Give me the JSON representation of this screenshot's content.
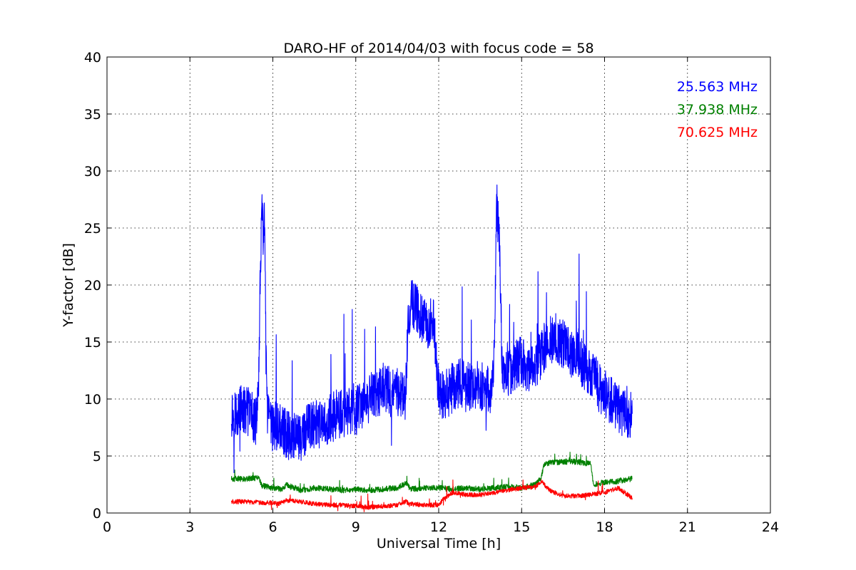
{
  "chart_data": {
    "type": "line",
    "title": "DARO-HF of 2014/04/03 with focus code = 58",
    "xlabel": "Universal Time [h]",
    "ylabel": "Y-factor [dB]",
    "xlim": [
      0,
      24
    ],
    "ylim": [
      0,
      40
    ],
    "xticks": [
      0,
      3,
      6,
      9,
      12,
      15,
      18,
      21,
      24
    ],
    "xtick_labels": [
      "0",
      "3",
      "6",
      "9",
      "12",
      "15",
      "18",
      "21",
      "24"
    ],
    "yticks": [
      0,
      5,
      10,
      15,
      20,
      25,
      30,
      35,
      40
    ],
    "ytick_labels": [
      "0",
      "5",
      "10",
      "15",
      "20",
      "25",
      "30",
      "35",
      "40"
    ],
    "grid": true,
    "legend_position": "top-right",
    "series": [
      {
        "name": "25.563 MHz",
        "color": "#0000ff",
        "x": [
          4.5,
          4.6,
          4.8,
          5.0,
          5.2,
          5.4,
          5.5,
          5.55,
          5.6,
          5.65,
          5.7,
          5.75,
          5.8,
          5.9,
          6.0,
          6.2,
          6.4,
          6.6,
          6.8,
          7.0,
          7.2,
          7.5,
          7.8,
          8.0,
          8.3,
          8.6,
          9.0,
          9.3,
          9.6,
          9.8,
          10.0,
          10.3,
          10.6,
          10.8,
          10.9,
          11.0,
          11.2,
          11.4,
          11.6,
          11.8,
          12.0,
          12.2,
          12.5,
          12.8,
          13.0,
          13.3,
          13.6,
          13.9,
          14.0,
          14.1,
          14.2,
          14.3,
          14.4,
          14.6,
          14.8,
          15.0,
          15.2,
          15.4,
          15.6,
          15.8,
          16.0,
          16.2,
          16.4,
          16.6,
          16.8,
          17.0,
          17.2,
          17.4,
          17.6,
          17.8,
          18.0,
          18.2,
          18.4,
          18.6,
          18.8,
          19.0
        ],
        "values": [
          8.8,
          8.7,
          9.0,
          8.9,
          8.8,
          8.0,
          12.0,
          22.0,
          26.5,
          24.0,
          26.0,
          14.0,
          8.5,
          7.8,
          7.5,
          7.6,
          7.2,
          6.8,
          7.0,
          6.5,
          7.2,
          7.8,
          7.5,
          8.2,
          8.6,
          8.7,
          9.0,
          9.5,
          10.3,
          10.5,
          11.0,
          10.5,
          10.7,
          10.2,
          17.0,
          18.5,
          18.0,
          17.0,
          16.5,
          17.0,
          10.5,
          10.2,
          11.0,
          11.5,
          11.0,
          11.2,
          11.0,
          10.5,
          14.0,
          27.0,
          24.0,
          12.5,
          12.0,
          12.5,
          13.0,
          13.5,
          12.5,
          13.0,
          13.5,
          14.5,
          15.0,
          15.5,
          15.0,
          14.5,
          14.0,
          14.5,
          13.0,
          12.5,
          12.0,
          11.0,
          10.5,
          10.0,
          9.5,
          9.0,
          8.8,
          8.7
        ]
      },
      {
        "name": "37.938 MHz",
        "color": "#008000",
        "x": [
          4.5,
          5.0,
          5.5,
          5.6,
          6.0,
          6.3,
          6.5,
          6.8,
          7.0,
          7.5,
          8.0,
          8.5,
          9.0,
          9.5,
          10.0,
          10.5,
          10.8,
          11.0,
          11.5,
          12.0,
          12.5,
          13.0,
          13.5,
          14.0,
          14.5,
          15.0,
          15.5,
          15.7,
          15.8,
          16.0,
          16.5,
          17.0,
          17.5,
          17.6,
          18.0,
          18.5,
          19.0
        ],
        "values": [
          3.0,
          3.0,
          3.1,
          2.4,
          2.2,
          2.1,
          2.5,
          2.2,
          2.0,
          2.2,
          2.1,
          2.0,
          2.1,
          2.0,
          2.1,
          2.2,
          2.6,
          2.1,
          2.2,
          2.2,
          2.1,
          2.2,
          2.1,
          2.2,
          2.3,
          2.2,
          2.5,
          3.0,
          4.2,
          4.4,
          4.5,
          4.5,
          4.3,
          2.5,
          2.7,
          2.8,
          3.0
        ]
      },
      {
        "name": "70.625 MHz",
        "color": "#ff0000",
        "x": [
          4.5,
          5.0,
          5.5,
          6.0,
          6.2,
          6.5,
          7.0,
          7.5,
          8.0,
          8.5,
          9.0,
          9.5,
          10.0,
          10.5,
          10.8,
          11.0,
          11.5,
          12.0,
          12.2,
          12.5,
          13.0,
          13.5,
          14.0,
          14.5,
          15.0,
          15.5,
          15.7,
          16.0,
          16.5,
          17.0,
          17.5,
          18.0,
          18.5,
          19.0
        ],
        "values": [
          1.0,
          1.0,
          0.9,
          0.9,
          0.8,
          1.1,
          1.0,
          0.8,
          0.7,
          0.7,
          0.6,
          0.5,
          0.6,
          0.7,
          1.0,
          0.8,
          0.7,
          0.7,
          1.3,
          1.8,
          1.6,
          1.6,
          1.8,
          2.0,
          2.2,
          2.3,
          2.8,
          2.0,
          1.5,
          1.5,
          1.6,
          1.8,
          2.2,
          1.3
        ]
      }
    ]
  }
}
